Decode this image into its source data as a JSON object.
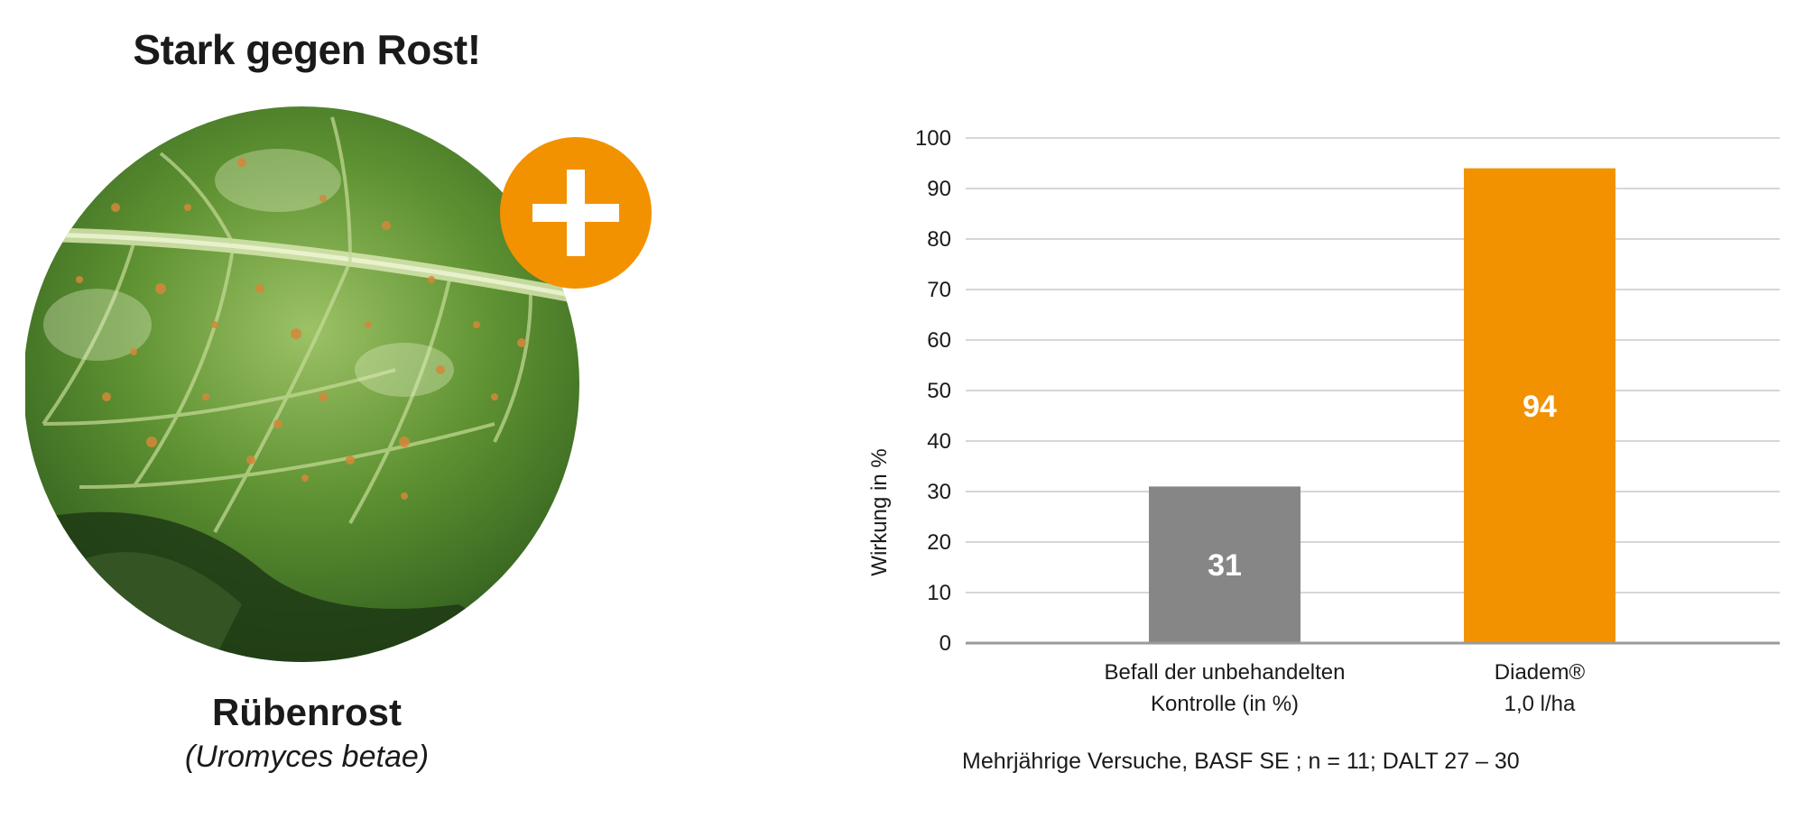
{
  "left_panel": {
    "headline": "Stark gegen Rost!",
    "pest_name": "Rübenrost",
    "pest_latin": "(Uromyces betae)",
    "badge_icon": "plus-icon",
    "colors": {
      "badge": "#f39200",
      "leaf_dark": "#2d5a1e",
      "leaf_light": "#8cb55a",
      "spots": "#d4883a"
    }
  },
  "chart_data": {
    "type": "bar",
    "categories": [
      [
        "Befall der unbehandelten",
        "Kontrolle (in %)"
      ],
      [
        "Diadem®",
        "1,0 l/ha"
      ]
    ],
    "values": [
      31,
      94
    ],
    "value_labels": [
      "31",
      "94"
    ],
    "bar_colors": [
      "#868686",
      "#f39200"
    ],
    "ylabel": "Wirkung in %",
    "xlabel": "",
    "ylim": [
      0,
      100
    ],
    "yticks": [
      0,
      10,
      20,
      30,
      40,
      50,
      60,
      70,
      80,
      90,
      100
    ],
    "grid": true,
    "grid_color": "#d6d6d6",
    "axis_color": "#9a9a9a"
  },
  "footnote": "Mehrjährige Versuche, BASF SE ; n = 11; DALT 27 – 30"
}
